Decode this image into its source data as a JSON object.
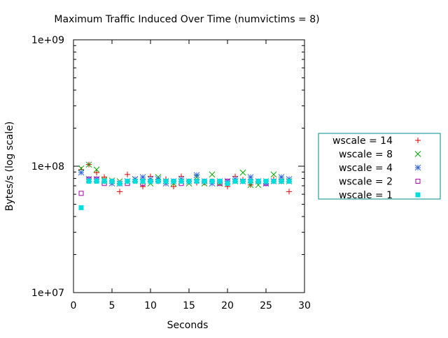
{
  "chart_data": {
    "type": "scatter",
    "title": "Maximum Traffic Induced Over Time (numvictims = 8)",
    "xlabel": "Seconds",
    "ylabel": "Bytes/s (log scale)",
    "xlim": [
      0,
      30
    ],
    "ylim": [
      10000000,
      1000000000
    ],
    "yscale": "log",
    "grid": false,
    "legend_placement": "right",
    "x_ticks": [
      0,
      5,
      10,
      15,
      20,
      25,
      30
    ],
    "x_tick_labels": [
      "0",
      "5",
      "10",
      "15",
      "20",
      "25",
      "30"
    ],
    "y_ticks": [
      10000000,
      100000000,
      1000000000
    ],
    "y_tick_labels": [
      "1e+07",
      "1e+08",
      "1e+09"
    ],
    "series": [
      {
        "name": "wscale = 14",
        "marker": "plus",
        "color": "#dd0000",
        "x": [
          1,
          2,
          3,
          4,
          5,
          6,
          7,
          8,
          9,
          10,
          11,
          12,
          13,
          14,
          15,
          16,
          17,
          18,
          19,
          20,
          21,
          22,
          23,
          24,
          25,
          26,
          27,
          28
        ],
        "y": [
          94000000.0,
          103000000.0,
          89000000.0,
          82000000.0,
          76000000.0,
          63000000.0,
          86000000.0,
          79000000.0,
          69000000.0,
          83000000.0,
          76000000.0,
          79000000.0,
          69000000.0,
          83000000.0,
          76000000.0,
          74000000.0,
          74000000.0,
          76000000.0,
          74000000.0,
          69000000.0,
          83000000.0,
          78000000.0,
          71000000.0,
          76000000.0,
          73000000.0,
          79000000.0,
          76000000.0,
          63000000.0
        ]
      },
      {
        "name": "wscale = 8",
        "marker": "cross",
        "color": "#00aa00",
        "x": [
          1,
          2,
          3,
          4,
          5,
          6,
          7,
          8,
          9,
          10,
          11,
          12,
          13,
          14,
          15,
          16,
          17,
          18,
          19,
          20,
          21,
          22,
          23,
          24,
          25,
          26,
          27,
          28
        ],
        "y": [
          96000000.0,
          103000000.0,
          94000000.0,
          78000000.0,
          77000000.0,
          76000000.0,
          76000000.0,
          79000000.0,
          76000000.0,
          73000000.0,
          82000000.0,
          76000000.0,
          73000000.0,
          76000000.0,
          73000000.0,
          82000000.0,
          73000000.0,
          86000000.0,
          73000000.0,
          76000000.0,
          76000000.0,
          89000000.0,
          71000000.0,
          71000000.0,
          76000000.0,
          86000000.0,
          76000000.0,
          76000000.0
        ]
      },
      {
        "name": "wscale = 4",
        "marker": "star",
        "color": "#3366dd",
        "x": [
          1,
          2,
          3,
          4,
          5,
          6,
          7,
          8,
          9,
          10,
          11,
          12,
          13,
          14,
          15,
          16,
          17,
          18,
          19,
          20,
          21,
          22,
          23,
          24,
          25,
          26,
          27,
          28
        ],
        "y": [
          89000000.0,
          79000000.0,
          79000000.0,
          76000000.0,
          73000000.0,
          73000000.0,
          76000000.0,
          79000000.0,
          82000000.0,
          79000000.0,
          79000000.0,
          73000000.0,
          76000000.0,
          79000000.0,
          76000000.0,
          85000000.0,
          76000000.0,
          73000000.0,
          76000000.0,
          76000000.0,
          79000000.0,
          76000000.0,
          82000000.0,
          76000000.0,
          73000000.0,
          76000000.0,
          82000000.0,
          79000000.0
        ]
      },
      {
        "name": "wscale = 2",
        "marker": "square",
        "color": "#aa00aa",
        "x": [
          1,
          2,
          3,
          4,
          5,
          6,
          7,
          8,
          9,
          10,
          11,
          12,
          13,
          14,
          15,
          16,
          17,
          18,
          19,
          20,
          21,
          22,
          23,
          24,
          25,
          26,
          27,
          28
        ],
        "y": [
          61000000.0,
          79000000.0,
          79000000.0,
          73000000.0,
          76000000.0,
          73000000.0,
          73000000.0,
          76000000.0,
          73000000.0,
          76000000.0,
          76000000.0,
          76000000.0,
          76000000.0,
          73000000.0,
          76000000.0,
          76000000.0,
          76000000.0,
          76000000.0,
          73000000.0,
          76000000.0,
          76000000.0,
          76000000.0,
          76000000.0,
          76000000.0,
          73000000.0,
          76000000.0,
          76000000.0,
          76000000.0
        ]
      },
      {
        "name": "wscale = 1",
        "marker": "filled-square",
        "color": "#00dddd",
        "x": [
          1,
          2,
          3,
          4,
          5,
          6,
          7,
          8,
          9,
          10,
          11,
          12,
          13,
          14,
          15,
          16,
          17,
          18,
          19,
          20,
          21,
          22,
          23,
          24,
          25,
          26,
          27,
          28
        ],
        "y": [
          47000000.0,
          76000000.0,
          76000000.0,
          76000000.0,
          76000000.0,
          73000000.0,
          76000000.0,
          76000000.0,
          76000000.0,
          76000000.0,
          76000000.0,
          76000000.0,
          76000000.0,
          76000000.0,
          76000000.0,
          76000000.0,
          76000000.0,
          76000000.0,
          76000000.0,
          73000000.0,
          76000000.0,
          76000000.0,
          76000000.0,
          76000000.0,
          76000000.0,
          76000000.0,
          76000000.0,
          76000000.0
        ]
      }
    ],
    "colors": {
      "legend_border": "#008b8b",
      "axis": "#000000"
    }
  }
}
